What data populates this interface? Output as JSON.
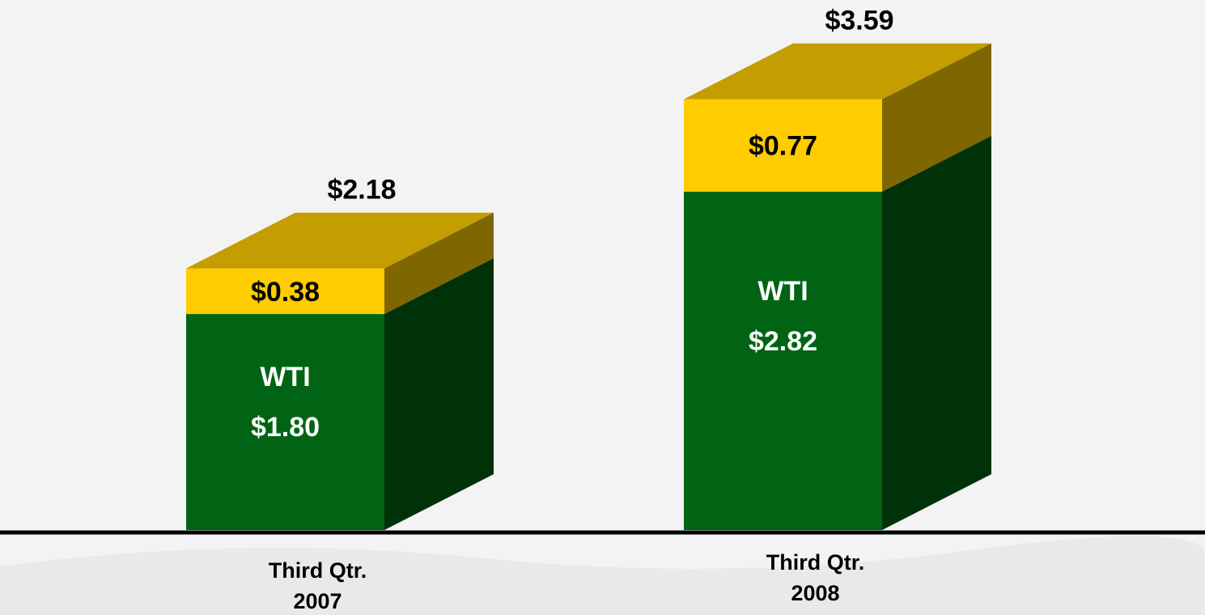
{
  "chart_data": {
    "type": "bar3d_stacked",
    "categories": [
      "Third Qtr.\n2007",
      "Third Qtr.\n2008"
    ],
    "series": [
      {
        "name": "WTI",
        "color": "#006414",
        "values": [
          1.8,
          2.82
        ],
        "value_labels": [
          "$1.80",
          "$2.82"
        ]
      },
      {
        "color": "#ffcc00",
        "values": [
          0.38,
          0.77
        ],
        "value_labels": [
          "$0.38",
          "$0.77"
        ]
      }
    ],
    "totals": [
      2.18,
      3.59
    ],
    "total_labels": [
      "$2.18",
      "$3.59"
    ]
  }
}
